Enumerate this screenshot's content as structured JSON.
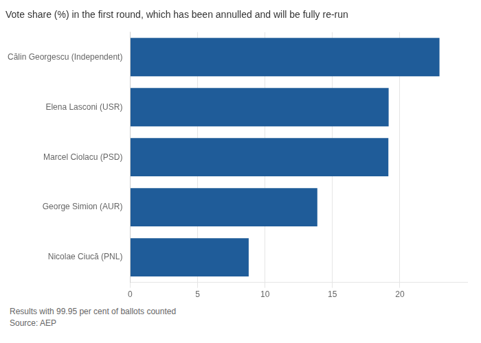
{
  "chart_data": {
    "type": "bar",
    "orientation": "horizontal",
    "title": "Vote share (%) in the first round, which has been annulled and will be fully re-run",
    "categories": [
      "Călin Georgescu (Independent)",
      "Elena Lasconi (USR)",
      "Marcel Ciolacu (PSD)",
      "George Simion (AUR)",
      "Nicolae Ciucă (PNL)"
    ],
    "values": [
      22.94,
      19.17,
      19.15,
      13.88,
      8.79
    ],
    "color": "#1f5c99",
    "xlim": [
      0,
      25
    ],
    "xticks": [
      0,
      5,
      10,
      15,
      20
    ],
    "grid": true,
    "annotations": [
      "Results with 99.95 per cent of ballots counted",
      "Source: AEP"
    ]
  }
}
